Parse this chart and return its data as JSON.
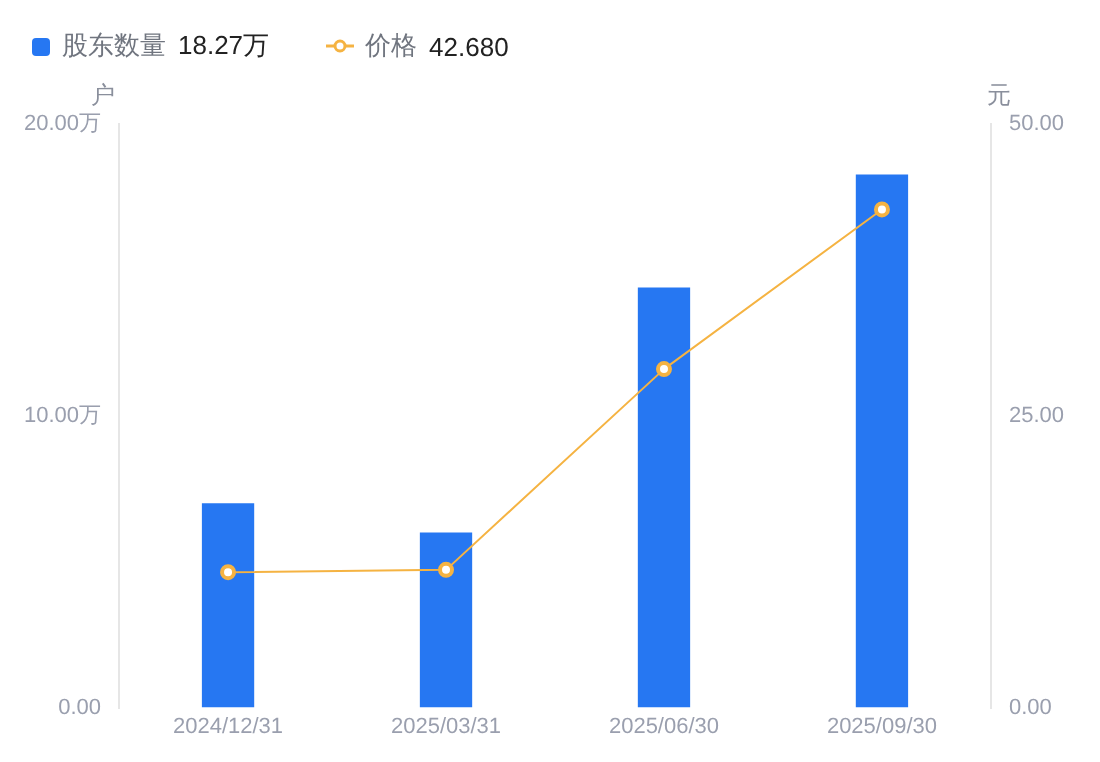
{
  "chart_data": {
    "type": "bar",
    "categories": [
      "2024/12/31",
      "2025/03/31",
      "2025/06/30",
      "2025/09/30"
    ],
    "ylabel": "户",
    "y2label": "元",
    "series": [
      {
        "name": "股东数量",
        "color": "#2677f2",
        "values": [
          7.0,
          6.0,
          14.4,
          18.27
        ]
      },
      {
        "name": "价格",
        "type": "line",
        "axis": "y2",
        "color": "#f5b342",
        "marker": "circle",
        "values": [
          11.6,
          11.8,
          29.0,
          42.68
        ]
      }
    ],
    "annotations": [
      "18.27万",
      "42.680"
    ],
    "ylim": [
      0,
      20
    ],
    "yticks": [
      {
        "value": 0,
        "label": "0.00"
      },
      {
        "value": 10,
        "label": "10.00万"
      },
      {
        "value": 20,
        "label": "20.00万"
      }
    ],
    "y2lim": [
      0,
      50
    ],
    "y2ticks": [
      {
        "value": 0,
        "label": "0.00"
      },
      {
        "value": 25,
        "label": "25.00"
      },
      {
        "value": 50,
        "label": "50.00"
      }
    ],
    "grid": false,
    "legend": "top left"
  }
}
